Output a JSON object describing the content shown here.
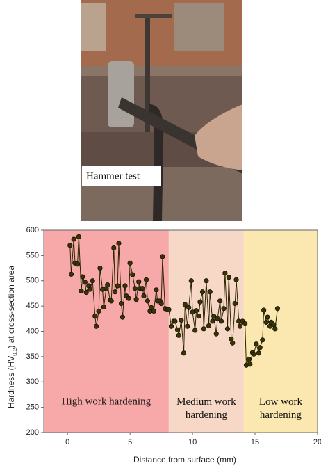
{
  "photo": {
    "caption": "Hammer test"
  },
  "chart_data": {
    "type": "line",
    "xlabel": "Distance from surface (mm)",
    "ylabel": [
      "Hardness  (HV",
      "0.2",
      ") at cross-section area"
    ],
    "xlim": [
      -1.9,
      20
    ],
    "ylim": [
      200,
      600
    ],
    "xticks": [
      0,
      5,
      10,
      15,
      20
    ],
    "yticks": [
      200,
      250,
      300,
      350,
      400,
      450,
      500,
      550,
      600
    ],
    "regions": [
      {
        "label": [
          "High work hardening"
        ],
        "xlim": [
          -1.9,
          8.1
        ],
        "color": "#f7a9a9"
      },
      {
        "label": [
          "Medium work",
          "hardening"
        ],
        "xlim": [
          8.1,
          14.1
        ],
        "color": "#f7d7c6"
      },
      {
        "label": [
          "Low work",
          "hardening"
        ],
        "xlim": [
          14.1,
          20
        ],
        "color": "#fbe7b0"
      }
    ],
    "series": [
      {
        "color": "#3b3300",
        "x": [
          0.2,
          0.3,
          0.5,
          0.6,
          0.8,
          0.9,
          1.1,
          1.2,
          1.4,
          1.5,
          1.7,
          1.8,
          2.0,
          2.2,
          2.3,
          2.5,
          2.6,
          2.8,
          2.9,
          3.1,
          3.2,
          3.4,
          3.5,
          3.7,
          3.8,
          4.0,
          4.1,
          4.3,
          4.4,
          4.6,
          4.7,
          4.9,
          5.0,
          5.2,
          5.4,
          5.5,
          5.7,
          5.8,
          6.0,
          6.1,
          6.3,
          6.4,
          6.6,
          6.7,
          6.9,
          7.1,
          7.2,
          7.4,
          7.5,
          7.6,
          7.8,
          8.0,
          8.1,
          8.3,
          8.5,
          8.6,
          8.8,
          8.9,
          9.1,
          9.3,
          9.4,
          9.6,
          9.7,
          9.9,
          10.0,
          10.2,
          10.3,
          10.5,
          10.6,
          10.8,
          10.9,
          11.1,
          11.3,
          11.4,
          11.6,
          11.7,
          11.9,
          12.0,
          12.2,
          12.3,
          12.5,
          12.6,
          12.8,
          12.9,
          13.1,
          13.2,
          13.4,
          13.5,
          13.7,
          13.8,
          14.0,
          14.2,
          14.3,
          14.5,
          14.6,
          14.8,
          14.9,
          15.1,
          15.3,
          15.4,
          15.6,
          15.7,
          15.9,
          16.0,
          16.2,
          16.3,
          16.5,
          16.6,
          16.8
        ],
        "values": [
          570,
          513,
          582,
          535,
          533,
          587,
          480,
          508,
          497,
          477,
          490,
          483,
          500,
          430,
          410,
          440,
          525,
          483,
          448,
          485,
          492,
          462,
          460,
          565,
          478,
          490,
          574,
          455,
          428,
          490,
          470,
          465,
          535,
          512,
          485,
          463,
          498,
          485,
          485,
          470,
          502,
          460,
          440,
          447,
          440,
          482,
          460,
          460,
          455,
          548,
          445,
          443,
          443,
          410,
          420,
          420,
          403,
          392,
          422,
          357,
          453,
          410,
          447,
          500,
          438,
          402,
          441,
          430,
          458,
          478,
          405,
          500,
          411,
          478,
          420,
          430,
          395,
          425,
          460,
          420,
          445,
          515,
          405,
          507,
          385,
          377,
          455,
          502,
          420,
          410,
          420,
          415,
          333,
          345,
          335,
          358,
          355,
          375,
          357,
          368,
          383,
          442,
          418,
          428,
          410,
          418,
          413,
          405,
          445
        ]
      }
    ]
  }
}
